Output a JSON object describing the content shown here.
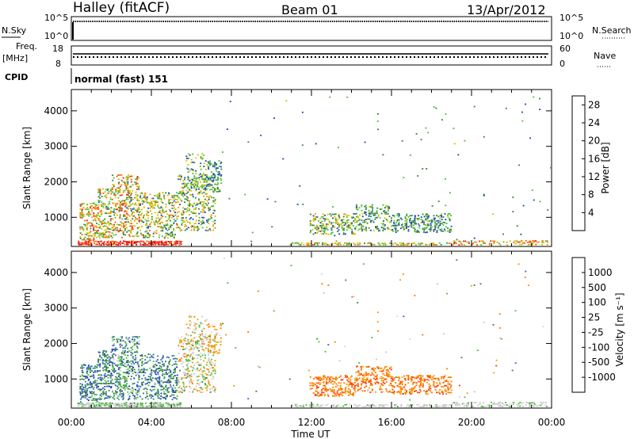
{
  "header": {
    "station": "Halley (fitACF)",
    "beam": "Beam 01",
    "date": "13/Apr/2012"
  },
  "params": {
    "nsky_label": "N.Sky",
    "nsearch_label": "N.Search",
    "freq_label": "Freq.",
    "freq_unit": "[MHz]",
    "nave_label": "Nave",
    "cpid_label": "CPID",
    "cpid_value": "normal (fast) 151",
    "nsky_ticks": [
      "10^5",
      "10^0"
    ],
    "nsearch_ticks": [
      "10^5",
      "10^0"
    ],
    "freq_ticks": [
      "18",
      "8"
    ],
    "nave_ticks": [
      "60",
      "0"
    ]
  },
  "colors": {
    "power": [
      "#0000ff",
      "#1e4fb4",
      "#3c8a3c",
      "#50c040",
      "#c8c800",
      "#f0a000",
      "#ff6000",
      "#ff2020",
      "#e00000"
    ],
    "velocity": [
      "#e00000",
      "#ff3c00",
      "#ff7800",
      "#f0a000",
      "#d8d8d8",
      "#c8c8c8",
      "#50c040",
      "#3c8a3c",
      "#3a6abe",
      "#1e3ca0"
    ]
  },
  "chart_data": [
    {
      "type": "heatmap",
      "title": "Power",
      "ylabel": "Slant Range [km]",
      "xlabel": "Time UT",
      "x_ticks": [
        "00:00",
        "04:00",
        "08:00",
        "12:00",
        "16:00",
        "20:00",
        "00:00"
      ],
      "xlim_hours": [
        0,
        24
      ],
      "y_ticks": [
        1000,
        2000,
        3000,
        4000
      ],
      "ylim_km": [
        180,
        4600
      ],
      "colorbar": {
        "label": "Power [dB]",
        "ticks": [
          4,
          8,
          12,
          16,
          20,
          24,
          28
        ],
        "range": [
          0,
          30
        ]
      },
      "clusters": [
        {
          "t0": 0.3,
          "t1": 5.5,
          "r0": 200,
          "r1": 330,
          "density": 0.85,
          "v": [
            20,
            30
          ]
        },
        {
          "t0": 0.4,
          "t1": 1.3,
          "r0": 330,
          "r1": 1400,
          "density": 0.45,
          "v": [
            8,
            26
          ]
        },
        {
          "t0": 1.3,
          "t1": 2.0,
          "r0": 400,
          "r1": 1800,
          "density": 0.4,
          "v": [
            6,
            24
          ]
        },
        {
          "t0": 2.0,
          "t1": 3.4,
          "r0": 400,
          "r1": 2200,
          "density": 0.38,
          "v": [
            6,
            26
          ]
        },
        {
          "t0": 3.4,
          "t1": 5.3,
          "r0": 400,
          "r1": 1700,
          "density": 0.35,
          "v": [
            4,
            22
          ]
        },
        {
          "t0": 5.3,
          "t1": 7.2,
          "r0": 600,
          "r1": 2200,
          "density": 0.3,
          "v": [
            4,
            20
          ]
        },
        {
          "t0": 5.7,
          "t1": 6.8,
          "r0": 1800,
          "r1": 2800,
          "density": 0.22,
          "v": [
            4,
            16
          ]
        },
        {
          "t0": 6.8,
          "t1": 7.5,
          "r0": 1700,
          "r1": 2600,
          "density": 0.3,
          "v": [
            4,
            14
          ]
        },
        {
          "t0": 10.9,
          "t1": 19.0,
          "r0": 200,
          "r1": 280,
          "density": 0.55,
          "v": [
            8,
            22
          ]
        },
        {
          "t0": 11.9,
          "t1": 14.2,
          "r0": 500,
          "r1": 1100,
          "density": 0.4,
          "v": [
            4,
            18
          ]
        },
        {
          "t0": 14.2,
          "t1": 16.0,
          "r0": 600,
          "r1": 1350,
          "density": 0.35,
          "v": [
            4,
            16
          ]
        },
        {
          "t0": 16.0,
          "t1": 19.0,
          "r0": 550,
          "r1": 1100,
          "density": 0.35,
          "v": [
            4,
            14
          ]
        },
        {
          "t0": 19.0,
          "t1": 23.8,
          "r0": 200,
          "r1": 340,
          "density": 0.4,
          "v": [
            10,
            26
          ]
        },
        {
          "t0": 7.5,
          "t1": 24.0,
          "r0": 300,
          "r1": 4400,
          "density": 0.004,
          "v": [
            4,
            14
          ]
        }
      ]
    },
    {
      "type": "heatmap",
      "title": "Velocity",
      "ylabel": "Slant Range [km]",
      "xlabel": "Time UT",
      "x_ticks": [
        "00:00",
        "04:00",
        "08:00",
        "12:00",
        "16:00",
        "20:00",
        "00:00"
      ],
      "xlim_hours": [
        0,
        24
      ],
      "y_ticks": [
        1000,
        2000,
        3000,
        4000
      ],
      "ylim_km": [
        180,
        4600
      ],
      "colorbar": {
        "label": "Velocity [m s⁻¹]",
        "ticks": [
          "1000",
          "500",
          "100",
          "25",
          "-25",
          "-100",
          "-500",
          "-1000"
        ]
      },
      "clusters": [
        {
          "t0": 0.3,
          "t1": 5.5,
          "r0": 200,
          "r1": 330,
          "density": 0.8,
          "v": [
            4,
            7
          ]
        },
        {
          "t0": 0.4,
          "t1": 1.3,
          "r0": 330,
          "r1": 1400,
          "density": 0.45,
          "v": [
            6,
            9
          ]
        },
        {
          "t0": 1.3,
          "t1": 2.0,
          "r0": 400,
          "r1": 1800,
          "density": 0.4,
          "v": [
            6,
            9
          ]
        },
        {
          "t0": 2.0,
          "t1": 3.4,
          "r0": 400,
          "r1": 2200,
          "density": 0.38,
          "v": [
            5,
            9
          ]
        },
        {
          "t0": 3.4,
          "t1": 5.3,
          "r0": 400,
          "r1": 1700,
          "density": 0.35,
          "v": [
            6,
            9
          ]
        },
        {
          "t0": 5.3,
          "t1": 7.2,
          "r0": 600,
          "r1": 2200,
          "density": 0.3,
          "v": [
            2,
            7
          ]
        },
        {
          "t0": 5.7,
          "t1": 6.8,
          "r0": 1800,
          "r1": 2800,
          "density": 0.22,
          "v": [
            2,
            6
          ]
        },
        {
          "t0": 6.8,
          "t1": 7.5,
          "r0": 1700,
          "r1": 2600,
          "density": 0.3,
          "v": [
            2,
            4
          ]
        },
        {
          "t0": 10.9,
          "t1": 19.0,
          "r0": 200,
          "r1": 280,
          "density": 0.5,
          "v": [
            4,
            6
          ]
        },
        {
          "t0": 11.9,
          "t1": 14.2,
          "r0": 500,
          "r1": 1100,
          "density": 0.4,
          "v": [
            1,
            3
          ]
        },
        {
          "t0": 14.2,
          "t1": 16.0,
          "r0": 600,
          "r1": 1350,
          "density": 0.35,
          "v": [
            1,
            3
          ]
        },
        {
          "t0": 16.0,
          "t1": 19.0,
          "r0": 550,
          "r1": 1100,
          "density": 0.35,
          "v": [
            1,
            3
          ]
        },
        {
          "t0": 19.0,
          "t1": 23.8,
          "r0": 200,
          "r1": 340,
          "density": 0.4,
          "v": [
            4,
            6
          ]
        },
        {
          "t0": 7.5,
          "t1": 24.0,
          "r0": 300,
          "r1": 4400,
          "density": 0.004,
          "v": [
            1,
            8
          ]
        }
      ]
    }
  ]
}
